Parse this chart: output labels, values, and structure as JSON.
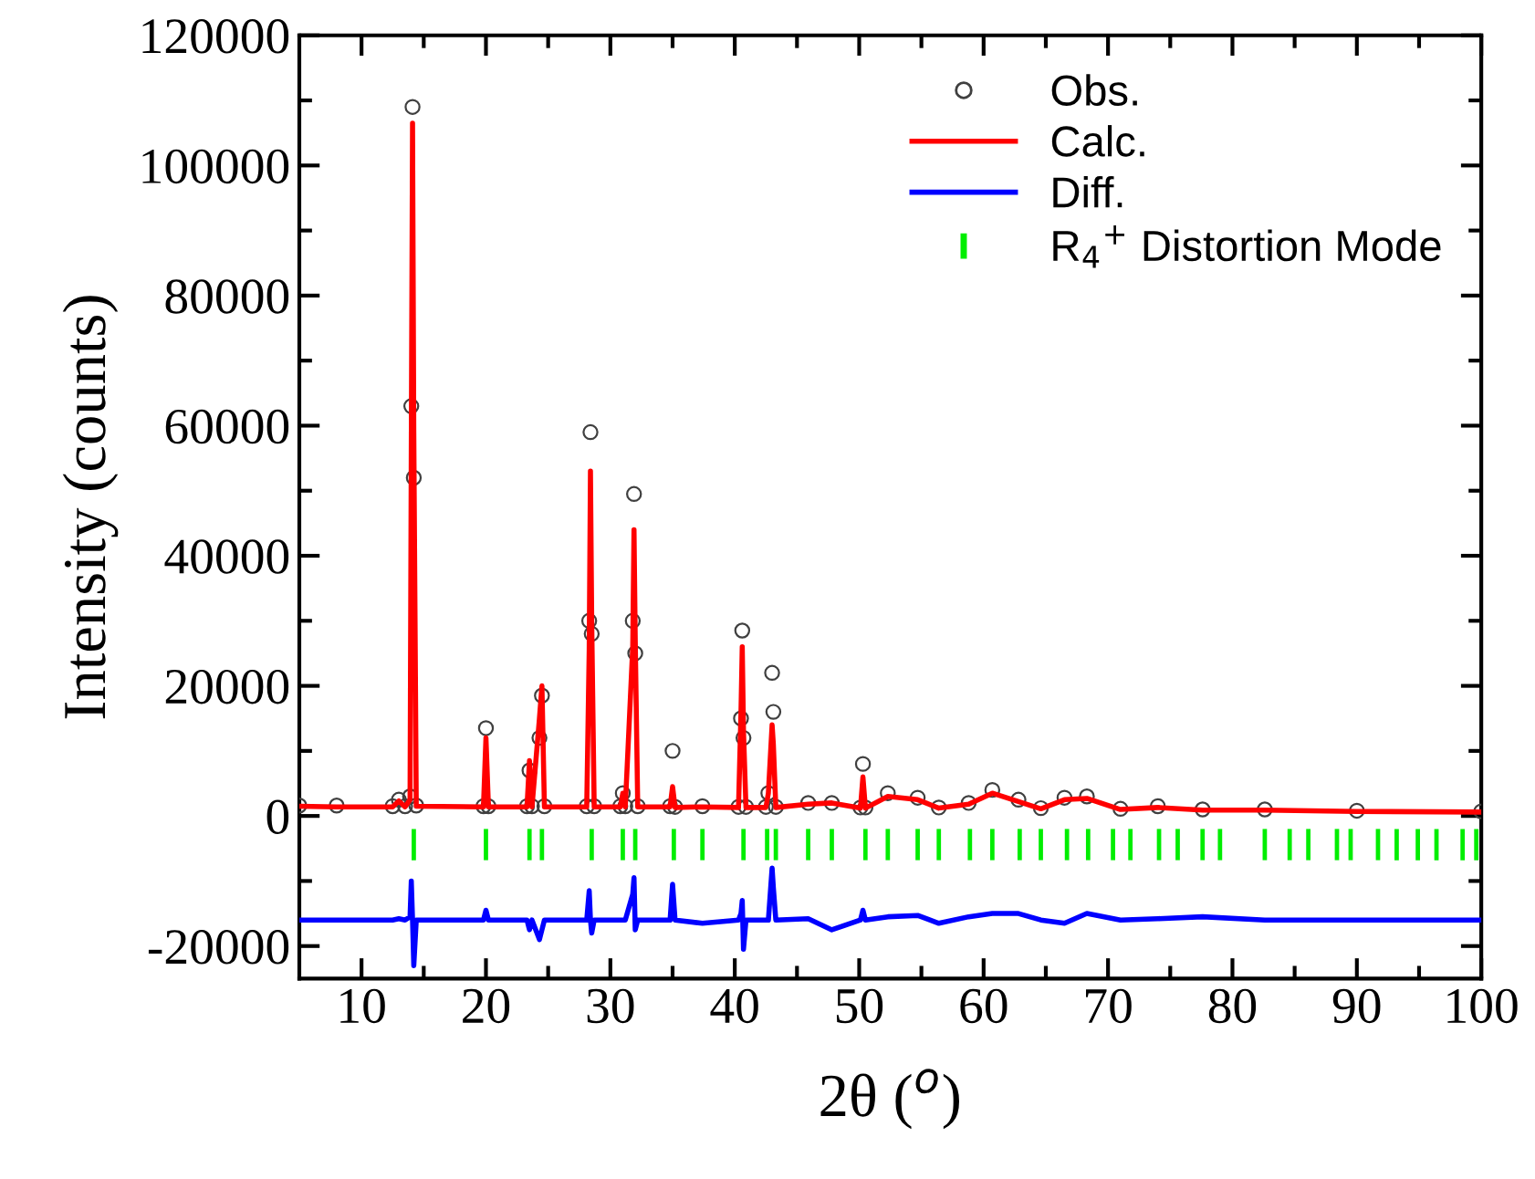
{
  "chart_data": {
    "type": "line",
    "xlabel": "2θ ($^{o}$)",
    "ylabel": "Intensity (counts)",
    "xlim": [
      5,
      100
    ],
    "xticks": [
      10,
      20,
      30,
      40,
      50,
      60,
      70,
      80,
      90,
      100
    ],
    "ylim": [
      -25000,
      120000
    ],
    "yticks": [
      -20000,
      0,
      20000,
      40000,
      60000,
      80000,
      100000,
      120000
    ],
    "grid": false,
    "legend": "top right",
    "x": [
      5,
      8,
      12.5,
      13,
      13.5,
      13.9,
      14.0,
      14.1,
      14.2,
      14.4,
      19.8,
      20.0,
      20.2,
      23.3,
      23.5,
      23.7,
      24.3,
      24.5,
      24.7,
      28.1,
      28.3,
      28.4,
      28.5,
      28.7,
      30.8,
      31.0,
      31.2,
      31.8,
      31.9,
      32.0,
      32.2,
      34.8,
      35.0,
      35.2,
      37.4,
      40.3,
      40.5,
      40.6,
      40.7,
      40.9,
      42.5,
      42.7,
      43.0,
      43.1,
      43.3,
      45.9,
      47.8,
      50.1,
      50.3,
      50.5,
      52.3,
      54.7,
      56.4,
      58.8,
      60.7,
      62.8,
      64.6,
      66.5,
      68.3,
      71.0,
      74.0,
      77.6,
      82.6,
      90,
      100
    ],
    "series": [
      {
        "name": "Obs.",
        "type": "scatter",
        "marker": "circle",
        "color": "#404040",
        "values": [
          1600,
          1600,
          1500,
          2500,
          1500,
          3000,
          63000,
          109000,
          52000,
          1600,
          1500,
          13500,
          1500,
          1500,
          7000,
          1500,
          12000,
          18500,
          1500,
          1500,
          30000,
          59000,
          28000,
          1500,
          1500,
          3500,
          1500,
          30000,
          49500,
          25000,
          1500,
          1500,
          10000,
          1400,
          1500,
          1400,
          15000,
          28500,
          12000,
          1400,
          1400,
          3500,
          22000,
          16000,
          1400,
          2000,
          2000,
          1300,
          8000,
          1300,
          3500,
          2800,
          1300,
          2000,
          4000,
          2500,
          1200,
          2800,
          3000,
          1100,
          1500,
          1000,
          1000,
          800,
          700
        ]
      },
      {
        "name": "Calc.",
        "color": "#ff0000",
        "values": [
          1500,
          1400,
          1400,
          2300,
          1400,
          2500,
          57000,
          106500,
          59000,
          1500,
          1400,
          12000,
          1400,
          1400,
          8500,
          1400,
          15000,
          20000,
          1400,
          1400,
          25500,
          53000,
          30000,
          1400,
          1400,
          3500,
          1400,
          26000,
          44000,
          27000,
          1400,
          1400,
          4500,
          1300,
          1400,
          1300,
          16000,
          26000,
          13000,
          1300,
          1300,
          3500,
          14000,
          11000,
          1300,
          1800,
          2000,
          1200,
          6000,
          1200,
          3000,
          2500,
          1200,
          1800,
          3500,
          2200,
          1100,
          2500,
          2700,
          1000,
          1300,
          900,
          900,
          700,
          600
        ]
      },
      {
        "name": "Diff.",
        "color": "#0000ff",
        "values": [
          -16000,
          -16000,
          -16000,
          -15800,
          -16000,
          -15500,
          -10000,
          -16000,
          -23000,
          -16000,
          -16000,
          -14500,
          -16000,
          -16000,
          -17500,
          -16000,
          -19000,
          -17500,
          -16000,
          -16000,
          -11500,
          -16000,
          -18000,
          -16000,
          -16000,
          -16000,
          -16000,
          -12000,
          -9500,
          -17500,
          -16000,
          -16000,
          -10500,
          -16000,
          -16500,
          -16000,
          -15000,
          -13000,
          -20500,
          -16000,
          -16000,
          -16000,
          -8000,
          -11000,
          -16000,
          -15800,
          -17500,
          -16000,
          -14500,
          -16000,
          -15500,
          -15300,
          -16500,
          -15500,
          -15000,
          -15000,
          -16000,
          -16500,
          -15000,
          -16000,
          -15800,
          -15500,
          -16000,
          -16000,
          -16000
        ]
      },
      {
        "name": "R$_{4}$$^{+}$ Distortion Mode",
        "type": "bar",
        "color": "#00ee00",
        "base": [
          -6800,
          -6800,
          -6800,
          -6800,
          -6800,
          -6800,
          -6800,
          -6800,
          -6800,
          -6800,
          -6800,
          -6800,
          -6800,
          -6800,
          -6800,
          -6800,
          -6800,
          -6800,
          -6800,
          -6800,
          -6800,
          -6800,
          -6800,
          -6800,
          -6800,
          -6800,
          -6800,
          -6800,
          -6800,
          -6800,
          -6800,
          -6800,
          -6800,
          -6800,
          -6800,
          -6800,
          -6800,
          -6800,
          -6800,
          -6800,
          -6800
        ],
        "x": [
          14.2,
          20.0,
          23.5,
          24.5,
          28.5,
          31.0,
          32.0,
          35.1,
          37.4,
          40.7,
          42.6,
          43.3,
          45.9,
          47.8,
          50.5,
          52.3,
          54.7,
          56.4,
          58.9,
          60.7,
          62.9,
          64.6,
          66.7,
          68.4,
          70.4,
          71.8,
          74.1,
          75.6,
          77.6,
          79.0,
          82.6,
          84.6,
          86.1,
          88.4,
          89.5,
          91.7,
          93.2,
          94.9,
          96.4,
          98.5,
          99.6
        ],
        "values": [
          4800,
          4800,
          4800,
          4800,
          4800,
          4800,
          4800,
          4800,
          4800,
          4800,
          4800,
          4800,
          4800,
          4800,
          4800,
          4800,
          4800,
          4800,
          4800,
          4800,
          4800,
          4800,
          4800,
          4800,
          4800,
          4800,
          4800,
          4800,
          4800,
          4800,
          4800,
          4800,
          4800,
          4800,
          4800,
          4800,
          4800,
          4800,
          4800,
          4800,
          4800
        ]
      }
    ]
  }
}
